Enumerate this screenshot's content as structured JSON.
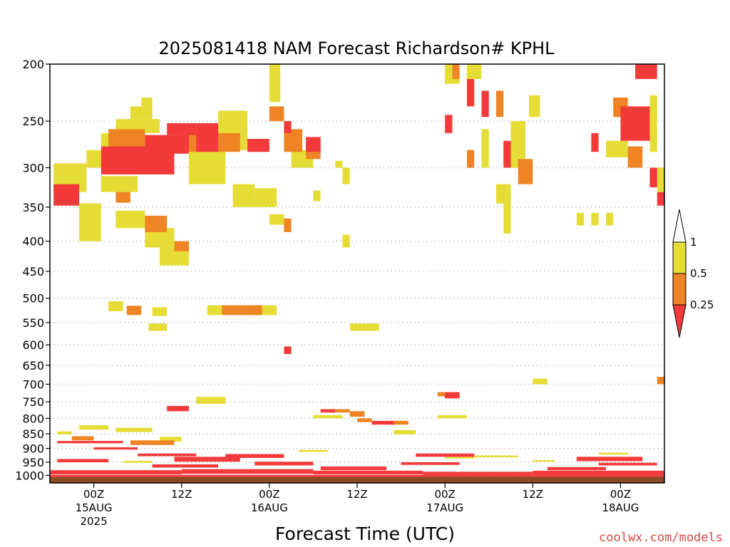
{
  "colors": {
    "lt_025": "#f23a3a",
    "c025_05": "#ee8424",
    "c05_1": "#e5dd35",
    "ground": "#8c4a22",
    "grid": "#b0b0b0",
    "credit": "#d64545"
  },
  "chart_data": {
    "type": "heatmap",
    "title": "2025081418 NAM Forecast Richardson# KPHL",
    "xlabel": "Forecast Time (UTC)",
    "ylabel": "",
    "y_axis": "pressure (hPa), inverted",
    "ylim": [
      1030,
      200
    ],
    "xlim": [
      -6,
      78
    ],
    "x_unit": "hours from 2025-08-15 00Z",
    "x_ticks": [
      {
        "x": 0,
        "lines": [
          "00Z",
          "15AUG",
          "2025"
        ]
      },
      {
        "x": 12,
        "lines": [
          "12Z"
        ]
      },
      {
        "x": 24,
        "lines": [
          "00Z",
          "16AUG"
        ]
      },
      {
        "x": 36,
        "lines": [
          "12Z"
        ]
      },
      {
        "x": 48,
        "lines": [
          "00Z",
          "17AUG"
        ]
      },
      {
        "x": 60,
        "lines": [
          "12Z"
        ]
      },
      {
        "x": 72,
        "lines": [
          "00Z",
          "18AUG"
        ]
      }
    ],
    "y_ticks": [
      {
        "p": 200,
        "label": "200"
      },
      {
        "p": 250,
        "label": "250"
      },
      {
        "p": 300,
        "label": "300"
      },
      {
        "p": 350,
        "label": "350"
      },
      {
        "p": 400,
        "label": "400"
      },
      {
        "p": 450,
        "label": "450"
      },
      {
        "p": 500,
        "label": "500"
      },
      {
        "p": 550,
        "label": "550"
      },
      {
        "p": 600,
        "label": "600"
      },
      {
        "p": 650,
        "label": "650"
      },
      {
        "p": 700,
        "label": "700"
      },
      {
        "p": 750,
        "label": "750"
      },
      {
        "p": 800,
        "label": "800"
      },
      {
        "p": 850,
        "label": "850"
      },
      {
        "p": 900,
        "label": "900"
      },
      {
        "p": 950,
        "label": "950"
      },
      {
        "p": 1000,
        "label": "1000"
      }
    ],
    "legend": {
      "placement": "right",
      "categories": [
        {
          "range": "<0.25",
          "label": "0.25",
          "color_key": "lt_025"
        },
        {
          "range": "0.25-0.5",
          "label": "0.5",
          "color_key": "c025_05"
        },
        {
          "range": "0.5-1",
          "label": "1",
          "color_key": "c05_1"
        }
      ]
    },
    "ground_band": {
      "p_top": 1006,
      "p_bottom": 1030
    },
    "cells": [
      {
        "x0": 6.5,
        "x1": 8,
        "p0": 228,
        "p1": 236,
        "c": 1
      },
      {
        "x0": 5,
        "x1": 8,
        "p0": 236,
        "p1": 248,
        "c": 1
      },
      {
        "x0": 3,
        "x1": 9,
        "p0": 248,
        "p1": 262,
        "c": 1
      },
      {
        "x0": 1,
        "x1": 6,
        "p0": 262,
        "p1": 280,
        "c": 1
      },
      {
        "x0": -1,
        "x1": 3,
        "p0": 280,
        "p1": 300,
        "c": 1
      },
      {
        "x0": -5.5,
        "x1": -1,
        "p0": 295,
        "p1": 330,
        "c": 1
      },
      {
        "x0": 1,
        "x1": 6,
        "p0": 310,
        "p1": 330,
        "c": 1
      },
      {
        "x0": -2,
        "x1": 1,
        "p0": 345,
        "p1": 400,
        "c": 1
      },
      {
        "x0": 3,
        "x1": 7,
        "p0": 355,
        "p1": 380,
        "c": 1
      },
      {
        "x0": 7,
        "x1": 11,
        "p0": 380,
        "p1": 410,
        "c": 1
      },
      {
        "x0": 9,
        "x1": 13,
        "p0": 410,
        "p1": 440,
        "c": 1
      },
      {
        "x0": 13,
        "x1": 18,
        "p0": 280,
        "p1": 320,
        "c": 1
      },
      {
        "x0": 17,
        "x1": 21,
        "p0": 240,
        "p1": 280,
        "c": 1
      },
      {
        "x0": 19,
        "x1": 22,
        "p0": 320,
        "p1": 350,
        "c": 1
      },
      {
        "x0": 22,
        "x1": 25,
        "p0": 325,
        "p1": 350,
        "c": 1
      },
      {
        "x0": 24,
        "x1": 25.5,
        "p0": 200,
        "p1": 232,
        "c": 1
      },
      {
        "x0": 24,
        "x1": 26,
        "p0": 360,
        "p1": 375,
        "c": 1
      },
      {
        "x0": 27,
        "x1": 30,
        "p0": 280,
        "p1": 300,
        "c": 1
      },
      {
        "x0": 30,
        "x1": 31,
        "p0": 328,
        "p1": 342,
        "c": 1
      },
      {
        "x0": 34,
        "x1": 35,
        "p0": 300,
        "p1": 320,
        "c": 1
      },
      {
        "x0": 33,
        "x1": 34,
        "p0": 292,
        "p1": 300,
        "c": 1
      },
      {
        "x0": 34,
        "x1": 35,
        "p0": 390,
        "p1": 410,
        "c": 1
      },
      {
        "x0": 7.5,
        "x1": 10,
        "p0": 552,
        "p1": 568,
        "c": 1
      },
      {
        "x0": 8,
        "x1": 10,
        "p0": 518,
        "p1": 536,
        "c": 1
      },
      {
        "x0": 2,
        "x1": 4,
        "p0": 506,
        "p1": 526,
        "c": 1
      },
      {
        "x0": 15.5,
        "x1": 17.5,
        "p0": 514,
        "p1": 534,
        "c": 1
      },
      {
        "x0": 22,
        "x1": 25,
        "p0": 514,
        "p1": 534,
        "c": 1
      },
      {
        "x0": 35,
        "x1": 39,
        "p0": 552,
        "p1": 568,
        "c": 1
      },
      {
        "x0": 14,
        "x1": 18,
        "p0": 736,
        "p1": 756,
        "c": 1
      },
      {
        "x0": 48,
        "x1": 50,
        "p0": 200,
        "p1": 216,
        "c": 1
      },
      {
        "x0": 51,
        "x1": 53,
        "p0": 200,
        "p1": 212,
        "c": 1
      },
      {
        "x0": 53,
        "x1": 54,
        "p0": 258,
        "p1": 300,
        "c": 1
      },
      {
        "x0": 55,
        "x1": 57,
        "p0": 320,
        "p1": 345,
        "c": 1
      },
      {
        "x0": 56,
        "x1": 57,
        "p0": 345,
        "p1": 388,
        "c": 1
      },
      {
        "x0": 57,
        "x1": 59,
        "p0": 250,
        "p1": 300,
        "c": 1
      },
      {
        "x0": 59.5,
        "x1": 61,
        "p0": 226,
        "p1": 246,
        "c": 1
      },
      {
        "x0": 66,
        "x1": 67,
        "p0": 358,
        "p1": 376,
        "c": 1
      },
      {
        "x0": 68,
        "x1": 69,
        "p0": 358,
        "p1": 376,
        "c": 1
      },
      {
        "x0": 70,
        "x1": 71,
        "p0": 358,
        "p1": 376,
        "c": 1
      },
      {
        "x0": 70,
        "x1": 73,
        "p0": 270,
        "p1": 288,
        "c": 1
      },
      {
        "x0": 74,
        "x1": 76,
        "p0": 200,
        "p1": 212,
        "c": 1
      },
      {
        "x0": 76,
        "x1": 77,
        "p0": 226,
        "p1": 282,
        "c": 1
      },
      {
        "x0": 77,
        "x1": 78,
        "p0": 300,
        "p1": 330,
        "c": 1
      },
      {
        "x0": 60,
        "x1": 62,
        "p0": 685,
        "p1": 700,
        "c": 1
      },
      {
        "x0": -5,
        "x1": -3,
        "p0": 842,
        "p1": 852,
        "c": 1
      },
      {
        "x0": -2,
        "x1": 2,
        "p0": 822,
        "p1": 836,
        "c": 1
      },
      {
        "x0": 3,
        "x1": 8,
        "p0": 830,
        "p1": 844,
        "c": 1
      },
      {
        "x0": 9,
        "x1": 12,
        "p0": 860,
        "p1": 876,
        "c": 1
      },
      {
        "x0": 30,
        "x1": 34,
        "p0": 790,
        "p1": 800,
        "c": 1
      },
      {
        "x0": 41,
        "x1": 44,
        "p0": 838,
        "p1": 852,
        "c": 1
      },
      {
        "x0": 47,
        "x1": 51,
        "p0": 790,
        "p1": 800,
        "c": 1
      },
      {
        "x0": 28,
        "x1": 32,
        "p0": 905,
        "p1": 912,
        "c": 1
      },
      {
        "x0": 48,
        "x1": 52,
        "p0": 930,
        "p1": 936,
        "c": 1
      },
      {
        "x0": 52,
        "x1": 58,
        "p0": 925,
        "p1": 932,
        "c": 1
      },
      {
        "x0": 60,
        "x1": 63,
        "p0": 942,
        "p1": 948,
        "c": 1
      },
      {
        "x0": 4,
        "x1": 8,
        "p0": 945,
        "p1": 952,
        "c": 1
      },
      {
        "x0": 69,
        "x1": 73,
        "p0": 915,
        "p1": 922,
        "c": 1
      },
      {
        "x0": 2,
        "x1": 7,
        "p0": 258,
        "p1": 282,
        "c": 2
      },
      {
        "x0": 12,
        "x1": 15,
        "p0": 262,
        "p1": 282,
        "c": 2
      },
      {
        "x0": 17,
        "x1": 20,
        "p0": 262,
        "p1": 282,
        "c": 2
      },
      {
        "x0": 24,
        "x1": 26,
        "p0": 236,
        "p1": 250,
        "c": 2
      },
      {
        "x0": 26,
        "x1": 28.5,
        "p0": 258,
        "p1": 282,
        "c": 2
      },
      {
        "x0": 29,
        "x1": 31,
        "p0": 270,
        "p1": 290,
        "c": 2
      },
      {
        "x0": 7,
        "x1": 10,
        "p0": 362,
        "p1": 386,
        "c": 2
      },
      {
        "x0": 11,
        "x1": 13,
        "p0": 400,
        "p1": 416,
        "c": 2
      },
      {
        "x0": 3,
        "x1": 5,
        "p0": 330,
        "p1": 344,
        "c": 2
      },
      {
        "x0": 26,
        "x1": 27,
        "p0": 366,
        "p1": 386,
        "c": 2
      },
      {
        "x0": 4.5,
        "x1": 6.5,
        "p0": 515,
        "p1": 534,
        "c": 2
      },
      {
        "x0": 17.5,
        "x1": 23,
        "p0": 514,
        "p1": 534,
        "c": 2
      },
      {
        "x0": 35,
        "x1": 37,
        "p0": 778,
        "p1": 795,
        "c": 2
      },
      {
        "x0": 32,
        "x1": 35,
        "p0": 772,
        "p1": 782,
        "c": 2
      },
      {
        "x0": 49,
        "x1": 50,
        "p0": 200,
        "p1": 212,
        "c": 2
      },
      {
        "x0": 55,
        "x1": 56,
        "p0": 222,
        "p1": 246,
        "c": 2
      },
      {
        "x0": 58,
        "x1": 60,
        "p0": 290,
        "p1": 320,
        "c": 2
      },
      {
        "x0": 51,
        "x1": 52,
        "p0": 280,
        "p1": 300,
        "c": 2
      },
      {
        "x0": 71,
        "x1": 73,
        "p0": 228,
        "p1": 246,
        "c": 2
      },
      {
        "x0": 73,
        "x1": 75,
        "p0": 276,
        "p1": 300,
        "c": 2
      },
      {
        "x0": 77,
        "x1": 78,
        "p0": 680,
        "p1": 700,
        "c": 2
      },
      {
        "x0": 47,
        "x1": 48,
        "p0": 722,
        "p1": 734,
        "c": 2
      },
      {
        "x0": 40,
        "x1": 43,
        "p0": 808,
        "p1": 820,
        "c": 2
      },
      {
        "x0": 36,
        "x1": 38,
        "p0": 800,
        "p1": 812,
        "c": 2
      },
      {
        "x0": 5,
        "x1": 11,
        "p0": 872,
        "p1": 888,
        "c": 2
      },
      {
        "x0": -3,
        "x1": 0,
        "p0": 858,
        "p1": 872,
        "c": 2
      },
      {
        "x0": 1,
        "x1": 11,
        "p0": 276,
        "p1": 308,
        "c": 3
      },
      {
        "x0": 7,
        "x1": 13,
        "p0": 264,
        "p1": 284,
        "c": 3
      },
      {
        "x0": 10,
        "x1": 14,
        "p0": 252,
        "p1": 264,
        "c": 3
      },
      {
        "x0": 14,
        "x1": 17,
        "p0": 252,
        "p1": 282,
        "c": 3
      },
      {
        "x0": 21,
        "x1": 24,
        "p0": 268,
        "p1": 282,
        "c": 3
      },
      {
        "x0": 29,
        "x1": 31,
        "p0": 266,
        "p1": 282,
        "c": 3
      },
      {
        "x0": 26,
        "x1": 27,
        "p0": 250,
        "p1": 262,
        "c": 3
      },
      {
        "x0": -5.5,
        "x1": -2,
        "p0": 320,
        "p1": 348,
        "c": 3
      },
      {
        "x0": 26,
        "x1": 27,
        "p0": 604,
        "p1": 622,
        "c": 3
      },
      {
        "x0": 10,
        "x1": 13,
        "p0": 762,
        "p1": 778,
        "c": 3
      },
      {
        "x0": 48,
        "x1": 50,
        "p0": 722,
        "p1": 740,
        "c": 3
      },
      {
        "x0": 31,
        "x1": 33,
        "p0": 772,
        "p1": 782,
        "c": 3
      },
      {
        "x0": 38,
        "x1": 41,
        "p0": 808,
        "p1": 820,
        "c": 3
      },
      {
        "x0": 74,
        "x1": 77,
        "p0": 200,
        "p1": 212,
        "c": 3
      },
      {
        "x0": 72,
        "x1": 76,
        "p0": 236,
        "p1": 270,
        "c": 3
      },
      {
        "x0": 77,
        "x1": 78,
        "p0": 330,
        "p1": 348,
        "c": 3
      },
      {
        "x0": 51,
        "x1": 52,
        "p0": 212,
        "p1": 236,
        "c": 3
      },
      {
        "x0": 53,
        "x1": 54,
        "p0": 222,
        "p1": 246,
        "c": 3
      },
      {
        "x0": 56,
        "x1": 57,
        "p0": 270,
        "p1": 300,
        "c": 3
      },
      {
        "x0": 48,
        "x1": 49,
        "p0": 244,
        "p1": 262,
        "c": 3
      },
      {
        "x0": 68,
        "x1": 69,
        "p0": 262,
        "p1": 282,
        "c": 3
      },
      {
        "x0": 76,
        "x1": 77,
        "p0": 300,
        "p1": 324,
        "c": 3
      },
      {
        "x0": -5,
        "x1": 4,
        "p0": 874,
        "p1": 882,
        "c": 3
      },
      {
        "x0": 0,
        "x1": 6,
        "p0": 896,
        "p1": 904,
        "c": 3
      },
      {
        "x0": 6,
        "x1": 14,
        "p0": 918,
        "p1": 928,
        "c": 3
      },
      {
        "x0": 11,
        "x1": 20,
        "p0": 930,
        "p1": 948,
        "c": 3
      },
      {
        "x0": 18,
        "x1": 26,
        "p0": 920,
        "p1": 934,
        "c": 3
      },
      {
        "x0": -5,
        "x1": 2,
        "p0": 938,
        "p1": 950,
        "c": 3
      },
      {
        "x0": 8,
        "x1": 17,
        "p0": 958,
        "p1": 970,
        "c": 3
      },
      {
        "x0": 22,
        "x1": 30,
        "p0": 948,
        "p1": 962,
        "c": 3
      },
      {
        "x0": 31,
        "x1": 40,
        "p0": 966,
        "p1": 980,
        "c": 3
      },
      {
        "x0": 44,
        "x1": 52,
        "p0": 918,
        "p1": 930,
        "c": 3
      },
      {
        "x0": 42,
        "x1": 50,
        "p0": 950,
        "p1": 960,
        "c": 3
      },
      {
        "x0": 66,
        "x1": 75,
        "p0": 930,
        "p1": 946,
        "c": 3
      },
      {
        "x0": 69,
        "x1": 77,
        "p0": 952,
        "p1": 962,
        "c": 3
      },
      {
        "x0": 62,
        "x1": 70,
        "p0": 968,
        "p1": 980,
        "c": 3
      },
      {
        "x0": -6,
        "x1": 12,
        "p0": 980,
        "p1": 996,
        "c": 3
      },
      {
        "x0": 12,
        "x1": 30,
        "p0": 976,
        "p1": 994,
        "c": 3
      },
      {
        "x0": 30,
        "x1": 45,
        "p0": 982,
        "p1": 996,
        "c": 3
      },
      {
        "x0": 45,
        "x1": 60,
        "p0": 986,
        "p1": 998,
        "c": 3
      },
      {
        "x0": 60,
        "x1": 78,
        "p0": 982,
        "p1": 998,
        "c": 3
      },
      {
        "x0": -6,
        "x1": 78,
        "p0": 998,
        "p1": 1006,
        "c": 3
      }
    ]
  },
  "footer": {
    "credit": "coolwx.com/models"
  }
}
